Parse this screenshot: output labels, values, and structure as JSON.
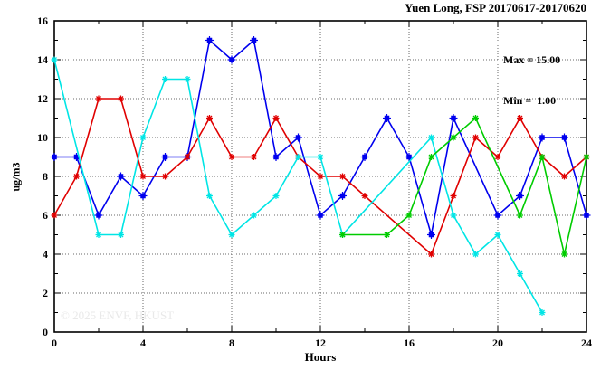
{
  "annotation": {
    "max_label": "Max = 15.00",
    "min_label": "Min =  1.00"
  },
  "watermark": "© 2025 ENVF, HKUST",
  "chart_data": {
    "type": "line",
    "title": "Yuen Long, FSP 20170617-20170620",
    "xlabel": "Hours",
    "ylabel": "ug/m3",
    "xlim": [
      0,
      24
    ],
    "ylim": [
      0,
      16
    ],
    "x_major_ticks": [
      0,
      4,
      8,
      12,
      16,
      20,
      24
    ],
    "x_minor_step": 2,
    "y_major_ticks": [
      0,
      2,
      4,
      6,
      8,
      10,
      12,
      14,
      16
    ],
    "y_minor_step": 1,
    "grid": true,
    "legend_position": "none",
    "max_value": 15.0,
    "min_value": 1.0,
    "series": [
      {
        "name": "series-blue",
        "color": "#0000ee",
        "marker": "square",
        "points": [
          [
            0,
            9
          ],
          [
            1,
            9
          ],
          [
            2,
            6
          ],
          [
            3,
            8
          ],
          [
            4,
            7
          ],
          [
            5,
            9
          ],
          [
            6,
            9
          ],
          [
            7,
            15
          ],
          [
            8,
            14
          ],
          [
            9,
            15
          ],
          [
            10,
            9
          ],
          [
            11,
            10
          ],
          [
            12,
            6
          ],
          [
            13,
            7
          ],
          [
            14,
            9
          ],
          [
            15,
            11
          ],
          [
            16,
            9
          ],
          [
            17,
            5
          ],
          [
            18,
            11
          ],
          [
            20,
            6
          ],
          [
            21,
            7
          ],
          [
            22,
            10
          ],
          [
            23,
            10
          ],
          [
            24,
            6
          ]
        ]
      },
      {
        "name": "series-red",
        "color": "#e00000",
        "marker": "star",
        "points": [
          [
            0,
            6
          ],
          [
            1,
            8
          ],
          [
            2,
            12
          ],
          [
            3,
            12
          ],
          [
            4,
            8
          ],
          [
            5,
            8
          ],
          [
            6,
            9
          ],
          [
            7,
            11
          ],
          [
            8,
            9
          ],
          [
            9,
            9
          ],
          [
            10,
            11
          ],
          [
            11,
            9
          ],
          [
            12,
            8
          ],
          [
            13,
            8
          ],
          [
            14,
            7
          ],
          [
            17,
            4
          ],
          [
            18,
            7
          ],
          [
            19,
            10
          ],
          [
            20,
            9
          ],
          [
            21,
            11
          ],
          [
            22,
            9
          ],
          [
            23,
            8
          ],
          [
            24,
            9
          ]
        ]
      },
      {
        "name": "series-cyan",
        "color": "#00e5e5",
        "marker": "star",
        "points": [
          [
            0,
            14
          ],
          [
            2,
            5
          ],
          [
            3,
            5
          ],
          [
            4,
            10
          ],
          [
            5,
            13
          ],
          [
            6,
            13
          ],
          [
            7,
            7
          ],
          [
            8,
            5
          ],
          [
            9,
            6
          ],
          [
            10,
            7
          ],
          [
            11,
            9
          ],
          [
            12,
            9
          ],
          [
            13,
            5
          ],
          [
            17,
            10
          ],
          [
            18,
            6
          ],
          [
            19,
            4
          ],
          [
            20,
            5
          ],
          [
            21,
            3
          ],
          [
            22,
            1
          ]
        ]
      },
      {
        "name": "series-green",
        "color": "#00cc00",
        "marker": "star",
        "points": [
          [
            13,
            5
          ],
          [
            15,
            5
          ],
          [
            16,
            6
          ],
          [
            17,
            9
          ],
          [
            18,
            10
          ],
          [
            19,
            11
          ],
          [
            21,
            6
          ],
          [
            22,
            9
          ],
          [
            23,
            4
          ],
          [
            24,
            9
          ]
        ]
      }
    ]
  }
}
